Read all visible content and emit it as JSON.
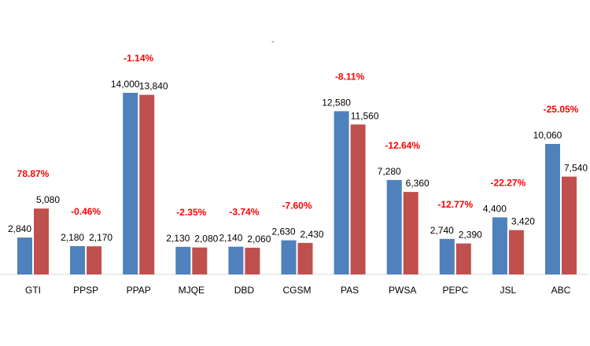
{
  "chart_data": {
    "type": "bar",
    "title": "-",
    "categories": [
      "GTI",
      "PPSP",
      "PPAP",
      "MJQE",
      "DBD",
      "CGSM",
      "PAS",
      "PWSA",
      "PEPC",
      "JSL",
      "ABC"
    ],
    "series": [
      {
        "values": [
          2840,
          2180,
          14000,
          2130,
          2140,
          2630,
          12580,
          7280,
          2740,
          4400,
          10060
        ],
        "color": "#4f81bd"
      },
      {
        "values": [
          5080,
          2170,
          13840,
          2080,
          2060,
          2430,
          11560,
          6360,
          2390,
          3420,
          7540
        ],
        "color": "#c0504d"
      }
    ],
    "value_labels": [
      [
        "2,840",
        "2,180",
        "14,000",
        "2,130",
        "2,140",
        "2,630",
        "12,580",
        "7,280",
        "2,740",
        "4,400",
        "10,060"
      ],
      [
        "5,080",
        "2,170",
        "13,840",
        "2,080",
        "2,060",
        "2,430",
        "11,560",
        "6,360",
        "2,390",
        "3,420",
        "7,540"
      ]
    ],
    "change_labels": [
      "78.87%",
      "-0.46%",
      "-1.14%",
      "-2.35%",
      "-3.74%",
      "-7.60%",
      "-8.11%",
      "-12.64%",
      "-12.77%",
      "-22.27%",
      "-25.05%"
    ],
    "change_label_color": "#ff0000",
    "ylim": [
      0,
      16000
    ],
    "grid": false,
    "legend": "none",
    "xlabel": "",
    "ylabel": ""
  }
}
